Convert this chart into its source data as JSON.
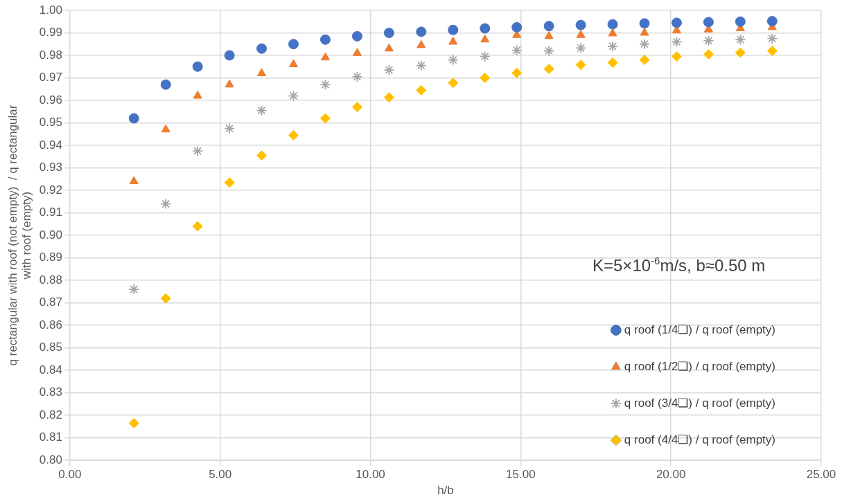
{
  "chart_data": {
    "type": "scatter",
    "xlabel": "h/b",
    "ylabel": "q rectangular with roof (not empty)  / q rectangular with roof (empty)",
    "annotations": [
      "K=5×10$^{-6}$m/s, b≈0.50 m"
    ],
    "x": [
      2.13,
      3.19,
      4.25,
      5.31,
      6.38,
      7.44,
      8.5,
      9.56,
      10.62,
      11.69,
      12.75,
      13.81,
      14.87,
      15.94,
      17.0,
      18.06,
      19.12,
      20.19,
      21.25,
      22.31,
      23.37
    ],
    "series": [
      {
        "name": "q roof (1/4❑) / q roof (empty)",
        "color": "#4472c4",
        "marker": "circle",
        "values": [
          0.952,
          0.967,
          0.975,
          0.98,
          0.983,
          0.985,
          0.987,
          0.9885,
          0.99,
          0.9905,
          0.9913,
          0.992,
          0.9925,
          0.993,
          0.9935,
          0.9938,
          0.9942,
          0.9945,
          0.9948,
          0.995,
          0.9952
        ]
      },
      {
        "name": "q roof (1/2❑) / q roof (empty)",
        "color": "#ed7d31",
        "marker": "triangle",
        "values": [
          0.924,
          0.947,
          0.962,
          0.967,
          0.972,
          0.976,
          0.979,
          0.981,
          0.983,
          0.9845,
          0.986,
          0.987,
          0.989,
          0.9885,
          0.989,
          0.9897,
          0.99,
          0.991,
          0.9915,
          0.992,
          0.9925
        ]
      },
      {
        "name": "q roof (3/4❑) / q roof (empty)",
        "color": "#a5a5a5",
        "marker": "cross",
        "values": [
          0.876,
          0.914,
          0.9375,
          0.9475,
          0.9555,
          0.962,
          0.967,
          0.9705,
          0.9735,
          0.9755,
          0.978,
          0.9795,
          0.9823,
          0.982,
          0.9833,
          0.984,
          0.985,
          0.986,
          0.9865,
          0.987,
          0.9875
        ]
      },
      {
        "name": "q roof (4/4❑) / q roof (empty)",
        "color": "#ffc000",
        "marker": "diamond",
        "values": [
          0.8165,
          0.872,
          0.904,
          0.9235,
          0.9355,
          0.9445,
          0.952,
          0.957,
          0.9613,
          0.9645,
          0.9678,
          0.97,
          0.9722,
          0.974,
          0.9758,
          0.9768,
          0.978,
          0.9795,
          0.9805,
          0.9812,
          0.982
        ]
      }
    ],
    "xlim": [
      0,
      25
    ],
    "xticks": [
      {
        "value": 0,
        "label": "0.00"
      },
      {
        "value": 5,
        "label": "5.00"
      },
      {
        "value": 10,
        "label": "10.00"
      },
      {
        "value": 15,
        "label": "15.00"
      },
      {
        "value": 20,
        "label": "20.00"
      },
      {
        "value": 25,
        "label": "25.00"
      }
    ],
    "ylim": [
      0.8,
      1.0
    ],
    "yticks": [
      {
        "value": 0.8,
        "label": "0.80"
      },
      {
        "value": 0.81,
        "label": "0.81"
      },
      {
        "value": 0.82,
        "label": "0.82"
      },
      {
        "value": 0.83,
        "label": "0.83"
      },
      {
        "value": 0.84,
        "label": "0.84"
      },
      {
        "value": 0.85,
        "label": "0.85"
      },
      {
        "value": 0.86,
        "label": "0.86"
      },
      {
        "value": 0.87,
        "label": "0.87"
      },
      {
        "value": 0.88,
        "label": "0.88"
      },
      {
        "value": 0.89,
        "label": "0.89"
      },
      {
        "value": 0.9,
        "label": "0.90"
      },
      {
        "value": 0.91,
        "label": "0.91"
      },
      {
        "value": 0.92,
        "label": "0.92"
      },
      {
        "value": 0.93,
        "label": "0.93"
      },
      {
        "value": 0.94,
        "label": "0.94"
      },
      {
        "value": 0.95,
        "label": "0.95"
      },
      {
        "value": 0.96,
        "label": "0.96"
      },
      {
        "value": 0.97,
        "label": "0.97"
      },
      {
        "value": 0.98,
        "label": "0.98"
      },
      {
        "value": 0.99,
        "label": "0.99"
      },
      {
        "value": 1.0,
        "label": "1.00"
      }
    ],
    "grid": true,
    "legend": "right"
  }
}
